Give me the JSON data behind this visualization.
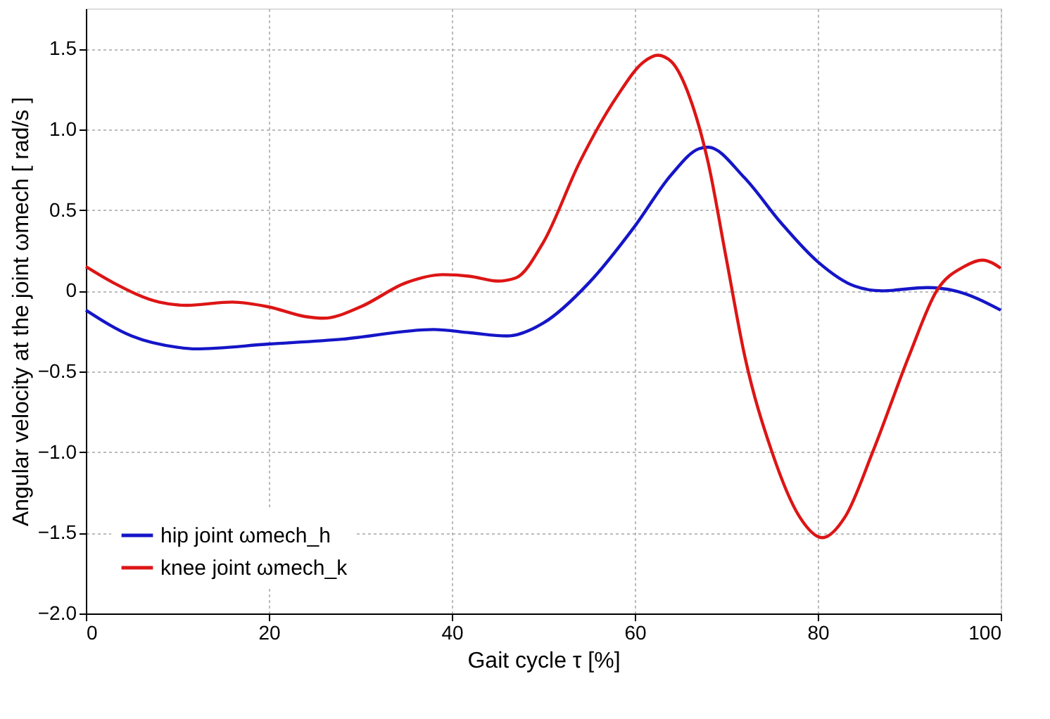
{
  "chart_data": {
    "type": "line",
    "xlabel": "Gait cycle  τ  [%]",
    "ylabel": "Angular velocity at the joint ωmech  [ rad/s ]",
    "xlim": [
      0,
      100
    ],
    "xticks": [
      0,
      20,
      40,
      60,
      80,
      100
    ],
    "ylim": [
      -2.0,
      1.75
    ],
    "yticks": [
      {
        "value": -2,
        "label": "−2.0"
      },
      {
        "value": -1.5,
        "label": "−1.5"
      },
      {
        "value": -1,
        "label": "−1.0"
      },
      {
        "value": -0.5,
        "label": "−0.5"
      },
      {
        "value": 0,
        "label": "0"
      },
      {
        "value": 0.5,
        "label": "0.5"
      },
      {
        "value": 1,
        "label": "1.0"
      },
      {
        "value": 1.5,
        "label": "1.5"
      }
    ],
    "grid": true,
    "legend": "bottom left",
    "line_style": "solid",
    "marker": "none",
    "series": [
      {
        "name": "hip joint ωmech_h",
        "color": "#1515c8",
        "x": [
          0,
          5,
          10,
          12,
          20,
          28,
          38,
          42,
          46,
          50,
          55,
          60,
          64,
          67,
          68,
          72,
          76,
          80,
          84,
          87,
          92,
          95,
          100
        ],
        "values": [
          -0.12,
          -0.28,
          -0.35,
          -0.36,
          -0.33,
          -0.3,
          -0.24,
          -0.26,
          -0.28,
          -0.2,
          0.05,
          0.4,
          0.72,
          0.88,
          0.89,
          0.7,
          0.42,
          0.18,
          0.03,
          0.0,
          0.02,
          0.0,
          -0.12
        ]
      },
      {
        "name": "knee joint ωmech_k",
        "color": "#dd1515",
        "x": [
          0,
          3,
          8,
          11,
          16,
          20,
          24,
          26,
          30,
          35,
          39,
          42,
          45,
          47,
          50,
          54,
          58,
          61,
          62.5,
          64,
          66,
          68,
          70,
          72,
          75,
          78,
          80.5,
          83,
          86,
          90,
          93,
          96,
          98,
          100
        ],
        "values": [
          0.15,
          0.05,
          -0.07,
          -0.09,
          -0.07,
          -0.1,
          -0.16,
          -0.17,
          -0.1,
          0.05,
          0.1,
          0.09,
          0.06,
          0.08,
          0.3,
          0.8,
          1.2,
          1.42,
          1.46,
          1.42,
          1.2,
          0.8,
          0.2,
          -0.4,
          -1.0,
          -1.4,
          -1.53,
          -1.4,
          -1.0,
          -0.4,
          0.0,
          0.15,
          0.19,
          0.14
        ]
      }
    ]
  }
}
